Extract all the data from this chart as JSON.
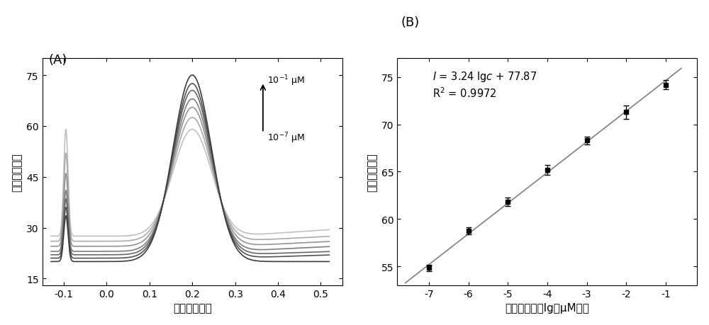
{
  "panel_A": {
    "xlabel": "电压（伏特）",
    "ylabel": "电流（微安）",
    "xlim": [
      -0.15,
      0.55
    ],
    "ylim": [
      13,
      80
    ],
    "yticks": [
      15,
      30,
      45,
      60,
      75
    ],
    "xticks": [
      -0.1,
      0.0,
      0.1,
      0.2,
      0.3,
      0.4,
      0.5
    ],
    "n_curves": 7,
    "peak_currents": [
      59.0,
      62.5,
      65.5,
      68.0,
      70.5,
      72.5,
      75.0
    ],
    "trough_mins": [
      27.5,
      26.0,
      24.5,
      23.0,
      22.0,
      21.0,
      20.0
    ],
    "right_ends": [
      29.5,
      27.5,
      26.0,
      24.5,
      23.0,
      22.0,
      20.0
    ],
    "spike_heights": [
      59.0,
      52.0,
      46.0,
      41.0,
      38.5,
      36.0,
      33.5
    ]
  },
  "panel_B": {
    "xlabel": "浓度的对数（lg（μM））",
    "ylabel": "电流（微安）",
    "xlim": [
      -7.8,
      -0.2
    ],
    "ylim": [
      53,
      77
    ],
    "yticks": [
      55,
      60,
      65,
      70,
      75
    ],
    "xticks": [
      -7,
      -6,
      -5,
      -4,
      -3,
      -2,
      -1
    ],
    "x_data": [
      -7,
      -6,
      -5,
      -4,
      -3,
      -2,
      -1
    ],
    "y_data": [
      54.85,
      58.75,
      61.8,
      65.2,
      68.3,
      71.3,
      74.2
    ],
    "y_err": [
      0.35,
      0.4,
      0.45,
      0.5,
      0.4,
      0.7,
      0.45
    ],
    "fit_slope": 3.24,
    "fit_intercept": 77.87,
    "line_color": "#888888"
  },
  "background_color": "#ffffff",
  "curve_colors_A": [
    "#c0c0c0",
    "#aaaaaa",
    "#949494",
    "#7e7e7e",
    "#686868",
    "#525252",
    "#3c3c3c"
  ]
}
